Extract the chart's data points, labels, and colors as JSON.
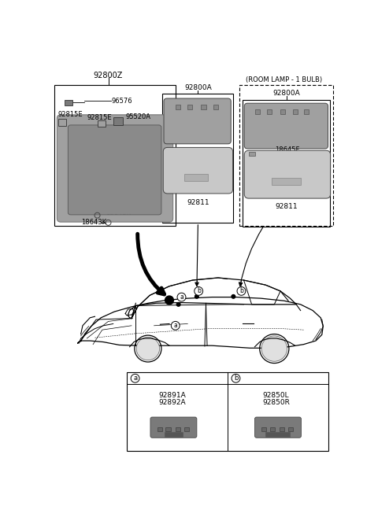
{
  "bg": "#ffffff",
  "label_92800Z": "92800Z",
  "label_96576": "96576",
  "label_92815E_1": "92815E",
  "label_92815E_2": "92815E",
  "label_95520A": "95520A",
  "label_18643K_1": "18643K",
  "label_18643K_2": "18643K",
  "label_92800A_center": "92800A",
  "label_92811_center": "92811",
  "label_room_lamp": "(ROOM LAMP - 1 BULB)",
  "label_92800A_room": "92800A",
  "label_18645F": "18645F",
  "label_92811_room": "92811",
  "label_92891A": "92891A",
  "label_92892A": "92892A",
  "label_92850L": "92850L",
  "label_92850R": "92850R",
  "gray_dark": "#7a7a7a",
  "gray_mid": "#a0a0a0",
  "gray_light": "#c8c8c8",
  "gray_box": "#d8d8d8",
  "black": "#000000",
  "white": "#ffffff"
}
